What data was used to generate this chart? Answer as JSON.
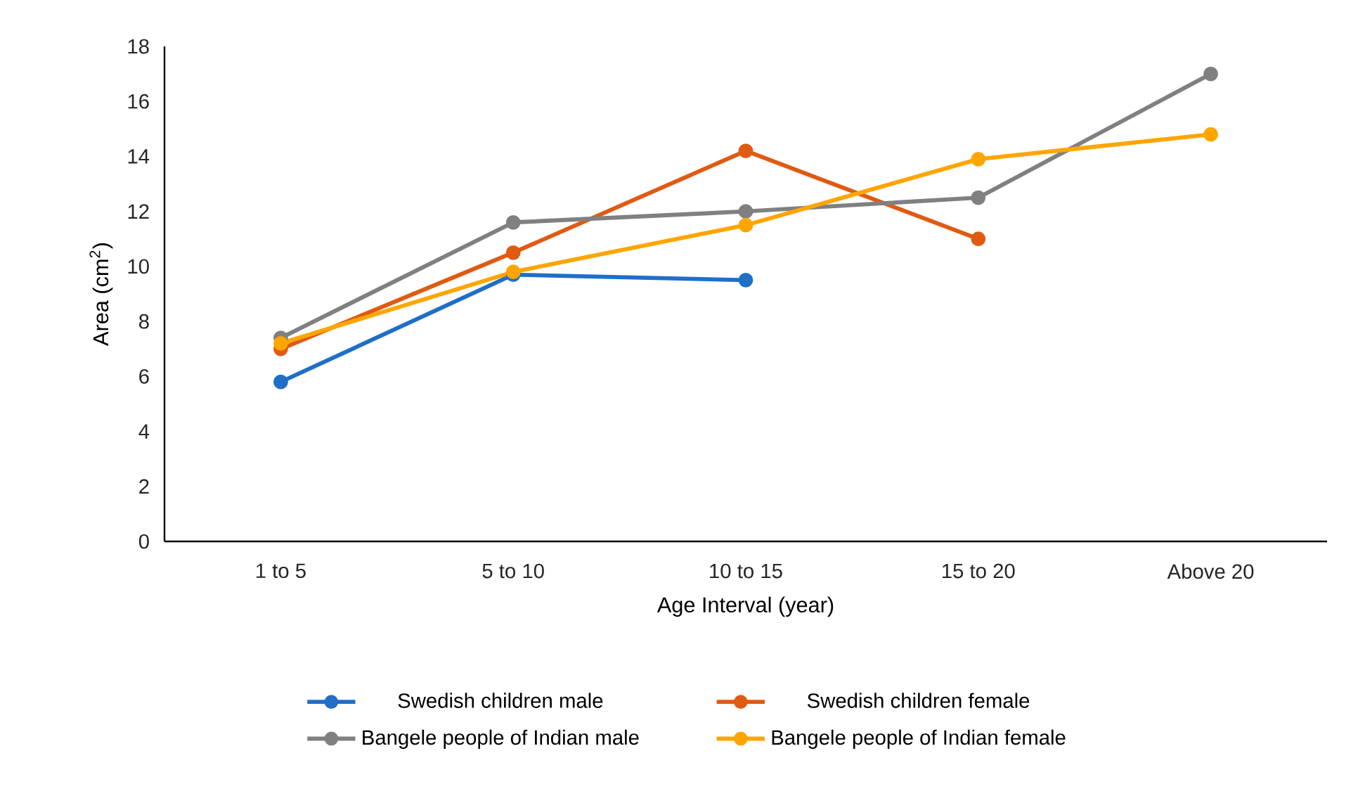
{
  "chart_data": {
    "type": "line",
    "xlabel": "Age Interval (year)",
    "ylabel": "Area (cm$^{2}$)",
    "categories": [
      "1 to 5",
      "5 to 10",
      "10 to 15",
      "15 to 20",
      "Above 20"
    ],
    "series": [
      {
        "name": "Swedish children male",
        "color": "#1f6fc8",
        "values": [
          5.8,
          9.7,
          9.5,
          null,
          null
        ]
      },
      {
        "name": "Swedish children female",
        "color": "#e05a12",
        "values": [
          7.0,
          10.5,
          14.2,
          11.0,
          null
        ]
      },
      {
        "name": "Bangele people of Indian male",
        "color": "#808080",
        "values": [
          7.4,
          11.6,
          12.0,
          12.5,
          17.0
        ]
      },
      {
        "name": "Bangele people of Indian female",
        "color": "#ffa500",
        "values": [
          7.2,
          9.8,
          11.5,
          13.9,
          14.8
        ]
      }
    ],
    "ylim": [
      0,
      18
    ],
    "yticks": [
      0,
      2,
      4,
      6,
      8,
      10,
      12,
      14,
      16,
      18
    ],
    "legend": "bottom",
    "marker": "circle",
    "line_style": "solid"
  }
}
